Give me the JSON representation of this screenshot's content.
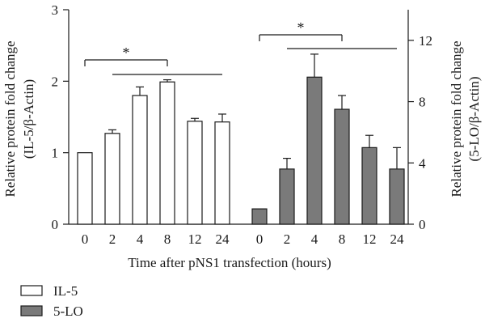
{
  "chart_data": {
    "type": "bar",
    "xlabel": "Time after pNS1 transfection (hours)",
    "categories": [
      "0",
      "2",
      "4",
      "8",
      "12",
      "24"
    ],
    "left_axis": {
      "ylabel_line1": "Relative protein fold change",
      "ylabel_line2": "(IL-5/β-Actin)",
      "ylim": [
        0,
        3
      ],
      "ticks": [
        "0",
        "1",
        "2",
        "3"
      ]
    },
    "right_axis": {
      "ylabel_line1": "Relative protein fold change",
      "ylabel_line2": "(5-LO/β-Actin)",
      "ylim": [
        0,
        14
      ],
      "ticks": [
        "0",
        "4",
        "8",
        "12"
      ]
    },
    "series": [
      {
        "name": "IL-5",
        "axis": "left",
        "color": "#ffffff",
        "values": [
          1.0,
          1.27,
          1.8,
          1.99,
          1.44,
          1.43
        ],
        "errors": [
          0.0,
          0.05,
          0.12,
          0.03,
          0.04,
          0.11
        ]
      },
      {
        "name": "5-LO",
        "axis": "right",
        "color": "#7a7a7a",
        "values": [
          1.0,
          3.6,
          9.6,
          7.5,
          5.0,
          3.6
        ],
        "errors": [
          0.0,
          0.7,
          1.5,
          0.9,
          0.8,
          1.4
        ]
      }
    ],
    "significance": [
      {
        "label": "*",
        "group": "left"
      },
      {
        "label": "*",
        "group": "right"
      }
    ],
    "legend": [
      "IL-5",
      "5-LO"
    ],
    "legend_position": "bottom-left",
    "grid": false
  }
}
